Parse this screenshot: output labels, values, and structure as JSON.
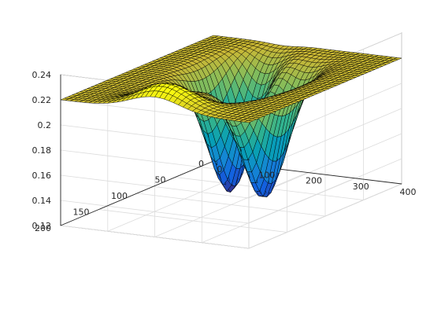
{
  "chart_data": {
    "type": "surface",
    "title": "",
    "xlabel": "",
    "ylabel": "",
    "zlabel": "",
    "grid": true,
    "colormap": "parula",
    "edge_color": "#000000",
    "xlim": [
      0,
      400
    ],
    "ylim": [
      0,
      200
    ],
    "zlim": [
      0.12,
      0.24
    ],
    "x_ticks": [
      {
        "value": 0,
        "label": "0"
      },
      {
        "value": 100,
        "label": "100"
      },
      {
        "value": 200,
        "label": "200"
      },
      {
        "value": 300,
        "label": "300"
      },
      {
        "value": 400,
        "label": "400"
      }
    ],
    "y_ticks": [
      {
        "value": 0,
        "label": "0"
      },
      {
        "value": 50,
        "label": "50"
      },
      {
        "value": 100,
        "label": "100"
      },
      {
        "value": 150,
        "label": "150"
      },
      {
        "value": 200,
        "label": "200"
      }
    ],
    "z_ticks": [
      {
        "value": 0.12,
        "label": "0.12"
      },
      {
        "value": 0.14,
        "label": "0.14"
      },
      {
        "value": 0.16,
        "label": "0.16"
      },
      {
        "value": 0.18,
        "label": "0.18"
      },
      {
        "value": 0.2,
        "label": "0.2"
      },
      {
        "value": 0.22,
        "label": "0.22"
      },
      {
        "value": 0.24,
        "label": "0.24"
      }
    ],
    "surface": {
      "x_range": [
        0,
        400
      ],
      "y_range": [
        0,
        200
      ],
      "grid_size": 40,
      "baseline": 0.22,
      "minima": [
        {
          "x": 150,
          "y": 70,
          "z": 0.12
        },
        {
          "x": 255,
          "y": 90,
          "z": 0.125
        }
      ],
      "maximum": {
        "x": 200,
        "y": 185,
        "z": 0.235
      },
      "z_range": [
        0.12,
        0.235
      ]
    }
  }
}
